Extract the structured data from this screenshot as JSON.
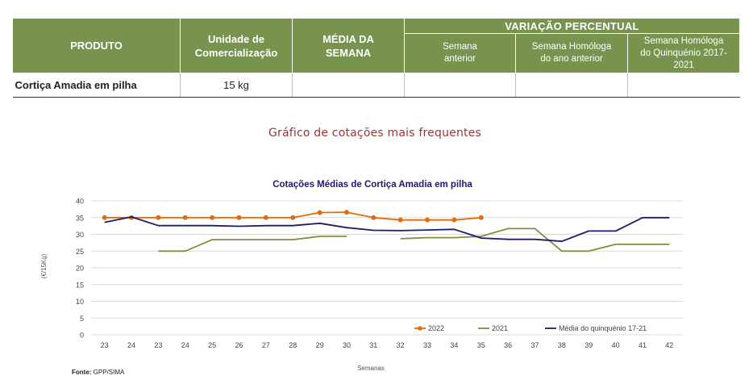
{
  "table": {
    "headers": {
      "produto": "PRODUTO",
      "unidade": "Unidade de Comercialização",
      "media": "MÉDIA DA SEMANA",
      "variacao": "VARIAÇÃO PERCENTUAL",
      "semana_anterior": "Semana anterior",
      "semana_homologa": "Semana Homóloga do ano anterior",
      "semana_quinquenio": "Semana Homóloga do Quinquénio 2017-2021"
    },
    "row": {
      "produto": "Cortiça Amadia em pilha",
      "unidade": "15 kg",
      "media": "",
      "var_semana_anterior": "",
      "var_ano_anterior": "",
      "var_quinquenio": ""
    },
    "header_color": "#77934e"
  },
  "section_title": "Gráfico de cotações mais frequentes",
  "source": {
    "label": "Fonte:",
    "text": "GPP/SIMA"
  },
  "chart_data": {
    "type": "line",
    "title": "Cotações Médias de Cortiça Amadia em pilha",
    "xlabel": "Semanas",
    "ylabel": "(€/15Kg)",
    "categories": [
      "23",
      "24",
      "23",
      "24",
      "25",
      "26",
      "27",
      "28",
      "29",
      "30",
      "31",
      "32",
      "33",
      "34",
      "35",
      "36",
      "37",
      "38",
      "39",
      "40",
      "41",
      "42"
    ],
    "ylim": [
      0,
      40
    ],
    "yticks": [
      0,
      5,
      10,
      15,
      20,
      25,
      30,
      35,
      40
    ],
    "grid": true,
    "legend_position": "bottom-right",
    "series": [
      {
        "name": "2022",
        "color": "#e46c0a",
        "markers": true,
        "values": [
          35.0,
          35.0,
          35.0,
          35.0,
          35.0,
          35.0,
          35.0,
          35.0,
          36.5,
          36.6,
          35.0,
          34.3,
          34.3,
          34.3,
          35.0,
          null,
          null,
          null,
          null,
          null,
          null,
          null
        ]
      },
      {
        "name": "2021",
        "color": "#77933c",
        "markers": false,
        "values": [
          null,
          null,
          25.0,
          25.0,
          28.4,
          28.4,
          28.4,
          28.4,
          29.4,
          29.4,
          null,
          28.7,
          29.0,
          29.0,
          29.4,
          31.7,
          31.7,
          25.0,
          25.0,
          27.0,
          27.0,
          27.0
        ]
      },
      {
        "name": "Média do quinquénio 17-21",
        "color": "#1f1a6e",
        "markers": false,
        "values": [
          33.6,
          35.2,
          32.6,
          32.6,
          32.6,
          32.4,
          32.6,
          32.6,
          33.3,
          32.0,
          31.2,
          31.1,
          31.3,
          31.5,
          28.9,
          28.5,
          28.5,
          27.9,
          31.0,
          31.0,
          35.0,
          35.0
        ]
      }
    ]
  }
}
